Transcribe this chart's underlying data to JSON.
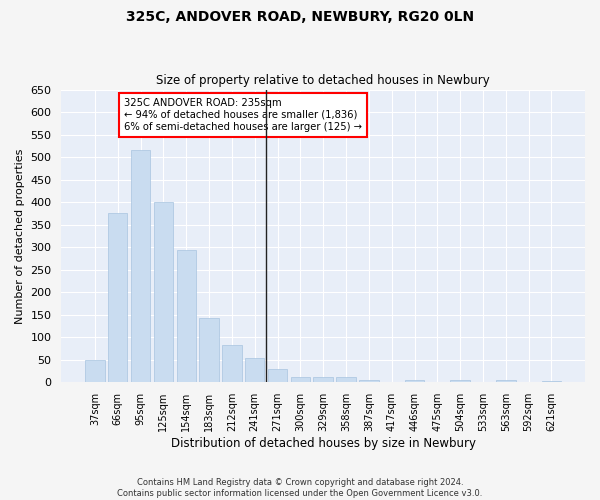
{
  "title": "325C, ANDOVER ROAD, NEWBURY, RG20 0LN",
  "subtitle": "Size of property relative to detached houses in Newbury",
  "xlabel": "Distribution of detached houses by size in Newbury",
  "ylabel": "Number of detached properties",
  "bar_color": "#c9dcf0",
  "bar_edge_color": "#a8c4e0",
  "axes_bg_color": "#e8eef8",
  "fig_bg_color": "#f5f5f5",
  "grid_color": "#ffffff",
  "categories": [
    "37sqm",
    "66sqm",
    "95sqm",
    "125sqm",
    "154sqm",
    "183sqm",
    "212sqm",
    "241sqm",
    "271sqm",
    "300sqm",
    "329sqm",
    "358sqm",
    "387sqm",
    "417sqm",
    "446sqm",
    "475sqm",
    "504sqm",
    "533sqm",
    "563sqm",
    "592sqm",
    "621sqm"
  ],
  "values": [
    50,
    375,
    515,
    400,
    293,
    143,
    82,
    55,
    29,
    11,
    11,
    11,
    5,
    0,
    5,
    0,
    5,
    0,
    5,
    0,
    4
  ],
  "ylim": [
    0,
    650
  ],
  "yticks": [
    0,
    50,
    100,
    150,
    200,
    250,
    300,
    350,
    400,
    450,
    500,
    550,
    600,
    650
  ],
  "vline_index": 7.5,
  "annotation_title": "325C ANDOVER ROAD: 235sqm",
  "annotation_line1": "← 94% of detached houses are smaller (1,836)",
  "annotation_line2": "6% of semi-detached houses are larger (125) →",
  "footer1": "Contains HM Land Registry data © Crown copyright and database right 2024.",
  "footer2": "Contains public sector information licensed under the Open Government Licence v3.0."
}
